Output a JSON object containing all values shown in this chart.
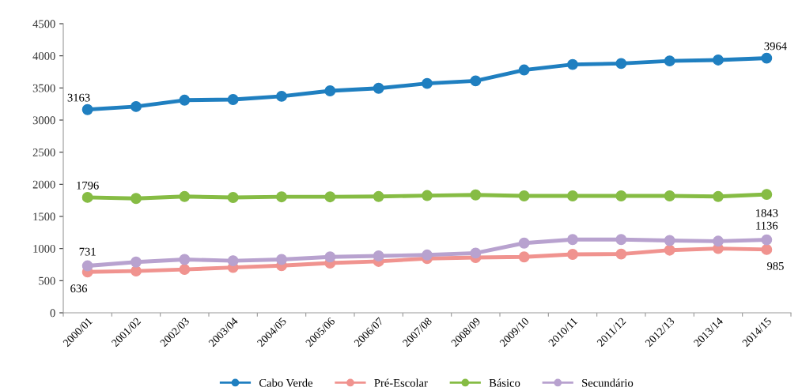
{
  "chart_data": {
    "type": "line",
    "categories": [
      "2000/01",
      "2001/02",
      "2002/03",
      "2003/04",
      "2004/05",
      "2005/06",
      "2006/07",
      "2007/08",
      "2008/09",
      "2009/10",
      "2010/11",
      "2011/12",
      "2012/13",
      "2013/14",
      "2014/15"
    ],
    "series": [
      {
        "name": "Cabo Verde",
        "color": "#1f7fc0",
        "values": [
          3163,
          3210,
          3310,
          3320,
          3370,
          3455,
          3495,
          3570,
          3610,
          3780,
          3865,
          3880,
          3920,
          3935,
          3964
        ],
        "value_labels": [
          "3163",
          null,
          null,
          null,
          null,
          null,
          null,
          null,
          null,
          null,
          null,
          null,
          null,
          null,
          "3964"
        ]
      },
      {
        "name": "Pré-Escolar",
        "color": "#f0938f",
        "values": [
          636,
          650,
          675,
          705,
          735,
          775,
          800,
          845,
          860,
          870,
          910,
          915,
          975,
          1000,
          985
        ],
        "value_labels": [
          "636",
          null,
          null,
          null,
          null,
          null,
          null,
          null,
          null,
          null,
          null,
          null,
          null,
          null,
          "985"
        ]
      },
      {
        "name": "Básico",
        "color": "#86bc44",
        "values": [
          1796,
          1780,
          1810,
          1795,
          1805,
          1805,
          1810,
          1825,
          1835,
          1820,
          1820,
          1820,
          1820,
          1810,
          1843
        ],
        "value_labels": [
          "1796",
          null,
          null,
          null,
          null,
          null,
          null,
          null,
          null,
          null,
          null,
          null,
          null,
          null,
          "1843"
        ]
      },
      {
        "name": "Secundário",
        "color": "#b8a2cf",
        "values": [
          731,
          790,
          830,
          810,
          830,
          870,
          885,
          900,
          930,
          1085,
          1140,
          1140,
          1125,
          1115,
          1136
        ],
        "value_labels": [
          "731",
          null,
          null,
          null,
          null,
          null,
          null,
          null,
          null,
          null,
          null,
          null,
          null,
          null,
          "1136"
        ]
      }
    ],
    "ylim": [
      0,
      4500
    ],
    "yticks": [
      0,
      500,
      1000,
      1500,
      2000,
      2500,
      3000,
      3500,
      4000,
      4500
    ],
    "grid": false,
    "legend": "bottom",
    "marker": "circle",
    "line_style": "solid"
  }
}
